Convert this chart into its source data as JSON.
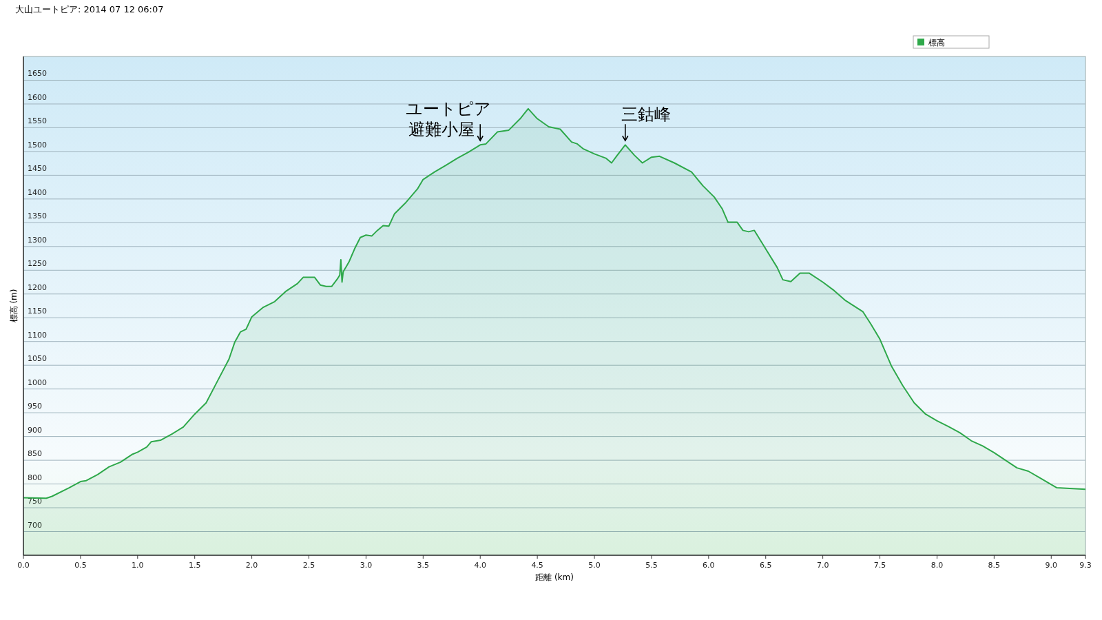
{
  "chart_data": {
    "type": "area",
    "title": "大山ユートピア: 2014 07 12 06:07",
    "xlabel": "距離 (km)",
    "ylabel": "標高 (m)",
    "x": [
      0,
      0.2,
      0.25,
      0.4,
      0.5,
      0.55,
      0.65,
      0.75,
      0.85,
      0.95,
      1.0,
      1.08,
      1.12,
      1.2,
      1.3,
      1.4,
      1.5,
      1.6,
      1.7,
      1.8,
      1.85,
      1.9,
      1.95,
      2.0,
      2.1,
      2.2,
      2.3,
      2.4,
      2.45,
      2.55,
      2.6,
      2.65,
      2.7,
      2.75,
      2.77,
      2.78,
      2.79,
      2.8,
      2.85,
      2.9,
      2.95,
      3.0,
      3.05,
      3.1,
      3.15,
      3.2,
      3.25,
      3.35,
      3.45,
      3.5,
      3.6,
      3.7,
      3.8,
      3.9,
      4.0,
      4.05,
      4.15,
      4.25,
      4.35,
      4.42,
      4.5,
      4.6,
      4.7,
      4.8,
      4.85,
      4.9,
      5.0,
      5.1,
      5.15,
      5.2,
      5.27,
      5.35,
      5.42,
      5.5,
      5.57,
      5.7,
      5.85,
      5.95,
      6.05,
      6.12,
      6.17,
      6.25,
      6.3,
      6.35,
      6.4,
      6.5,
      6.6,
      6.65,
      6.72,
      6.8,
      6.88,
      7.0,
      7.1,
      7.2,
      7.35,
      7.42,
      7.5,
      7.6,
      7.7,
      7.8,
      7.9,
      8.0,
      8.1,
      8.2,
      8.3,
      8.4,
      8.5,
      8.6,
      8.7,
      8.8,
      8.9,
      9.0,
      9.05,
      9.3
    ],
    "series": [
      {
        "name": "標高",
        "color": "#2ea84a",
        "values": [
          771,
          770,
          774,
          792,
          805,
          807,
          820,
          836,
          846,
          862,
          867,
          878,
          889,
          892,
          905,
          920,
          947,
          971,
          1017,
          1063,
          1098,
          1120,
          1126,
          1152,
          1172,
          1184,
          1206,
          1222,
          1235,
          1235,
          1219,
          1216,
          1216,
          1232,
          1240,
          1272,
          1225,
          1247,
          1267,
          1295,
          1319,
          1324,
          1322,
          1334,
          1344,
          1343,
          1369,
          1393,
          1421,
          1441,
          1457,
          1471,
          1486,
          1499,
          1514,
          1516,
          1541,
          1545,
          1569,
          1590,
          1569,
          1552,
          1547,
          1520,
          1516,
          1506,
          1495,
          1486,
          1476,
          1492,
          1514,
          1492,
          1476,
          1488,
          1490,
          1476,
          1457,
          1428,
          1404,
          1379,
          1351,
          1351,
          1334,
          1331,
          1334,
          1295,
          1256,
          1230,
          1226,
          1244,
          1244,
          1225,
          1207,
          1186,
          1163,
          1137,
          1105,
          1049,
          1007,
          971,
          947,
          933,
          921,
          908,
          891,
          880,
          866,
          850,
          834,
          827,
          813,
          799,
          792,
          789
        ]
      }
    ],
    "xlim": [
      0,
      9.3
    ],
    "ylim": [
      650,
      1700
    ],
    "xticks": [
      {
        "value": 0,
        "label": "0.0"
      },
      0.5,
      {
        "value": 1,
        "label": "1.0"
      },
      1.5,
      {
        "value": 2,
        "label": "2.0"
      },
      2.5,
      {
        "value": 3,
        "label": "3.0"
      },
      3.5,
      {
        "value": 4,
        "label": "4.0"
      },
      4.5,
      {
        "value": 5,
        "label": "5.0"
      },
      5.5,
      {
        "value": 6,
        "label": "6.0"
      },
      6.5,
      {
        "value": 7,
        "label": "7.0"
      },
      7.5,
      {
        "value": 8,
        "label": "8.0"
      },
      8.5,
      {
        "value": 9,
        "label": "9.0"
      },
      9.3
    ],
    "yticks": [
      700,
      750,
      800,
      850,
      900,
      950,
      1000,
      1050,
      1100,
      1150,
      1200,
      1250,
      1300,
      1350,
      1400,
      1450,
      1500,
      1550,
      1600,
      1650
    ],
    "grid": "y",
    "legend": "top right",
    "annotations": [
      "ユートピア",
      {
        "text": "避難小屋",
        "x": 4.0,
        "y": 1514
      },
      {
        "text": "三鈷峰",
        "x": 5.27,
        "y": 1514
      }
    ]
  }
}
